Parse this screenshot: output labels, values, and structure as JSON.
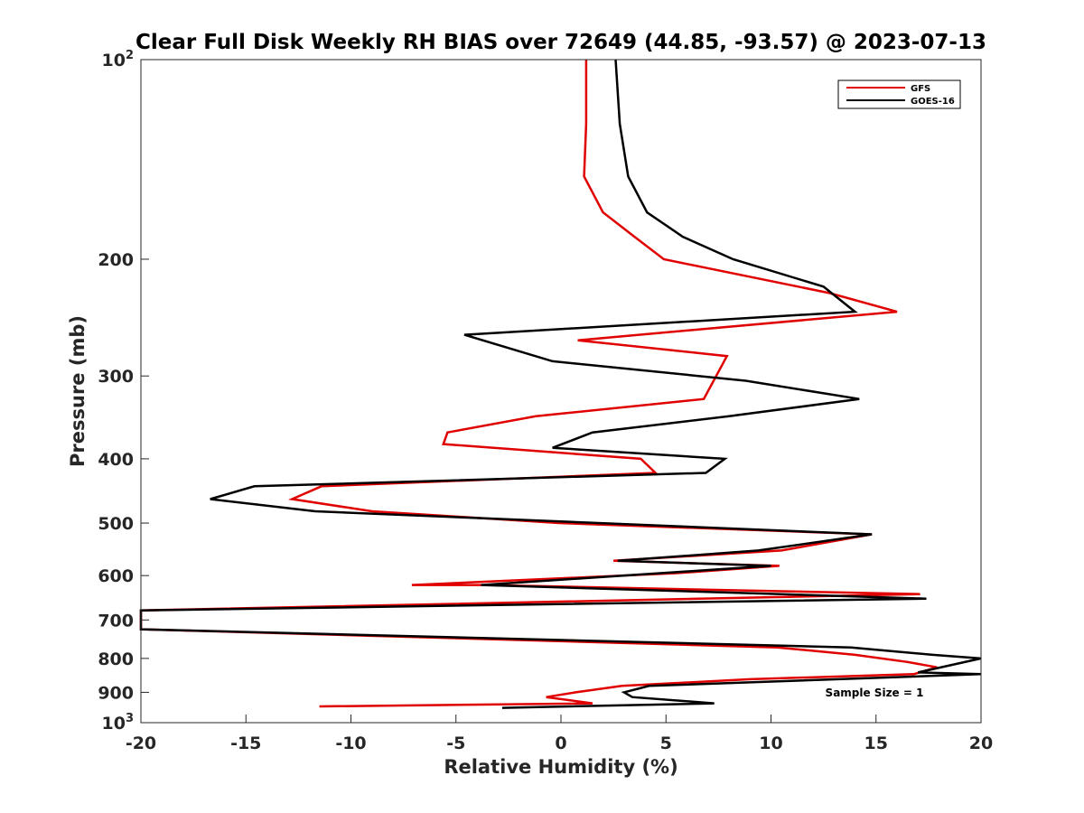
{
  "chart_data": {
    "type": "line",
    "title": "Clear Full Disk Weekly RH BIAS over 72649 (44.85, -93.57) @ 2023-07-13",
    "xlabel": "Relative Humidity (%)",
    "ylabel": "Pressure (mb)",
    "xlim": [
      -20,
      20
    ],
    "ylim": [
      100,
      1000
    ],
    "y_scale": "log",
    "y_reversed": true,
    "grid": false,
    "legend_position": "top-right",
    "annotation": "Sample Size = 1",
    "x_ticks": [
      {
        "value": -20,
        "label": "-20"
      },
      {
        "value": -15,
        "label": "-15"
      },
      {
        "value": -10,
        "label": "-10"
      },
      {
        "value": -5,
        "label": "-5"
      },
      {
        "value": 0,
        "label": "0"
      },
      {
        "value": 5,
        "label": "5"
      },
      {
        "value": 10,
        "label": "10"
      },
      {
        "value": 15,
        "label": "15"
      },
      {
        "value": 20,
        "label": "20"
      }
    ],
    "y_ticks": [
      {
        "value": 100,
        "base": "10",
        "exp": "2"
      },
      {
        "value": 200,
        "base": "200",
        "exp": ""
      },
      {
        "value": 300,
        "base": "300",
        "exp": ""
      },
      {
        "value": 400,
        "base": "400",
        "exp": ""
      },
      {
        "value": 500,
        "base": "500",
        "exp": ""
      },
      {
        "value": 600,
        "base": "600",
        "exp": ""
      },
      {
        "value": 700,
        "base": "700",
        "exp": ""
      },
      {
        "value": 800,
        "base": "800",
        "exp": ""
      },
      {
        "value": 900,
        "base": "900",
        "exp": ""
      },
      {
        "value": 1000,
        "base": "10",
        "exp": "3"
      }
    ],
    "series": [
      {
        "name": "GFS",
        "color": "#e00000",
        "points": [
          {
            "x": 1.2,
            "p": 100
          },
          {
            "x": 1.2,
            "p": 125
          },
          {
            "x": 1.1,
            "p": 150
          },
          {
            "x": 2.0,
            "p": 170
          },
          {
            "x": 3.5,
            "p": 185
          },
          {
            "x": 4.9,
            "p": 200
          },
          {
            "x": 12.8,
            "p": 225
          },
          {
            "x": 16.0,
            "p": 240
          },
          {
            "x": 0.8,
            "p": 265
          },
          {
            "x": 7.9,
            "p": 280
          },
          {
            "x": 6.8,
            "p": 325
          },
          {
            "x": -1.2,
            "p": 345
          },
          {
            "x": -5.4,
            "p": 365
          },
          {
            "x": -5.6,
            "p": 380
          },
          {
            "x": 3.8,
            "p": 400
          },
          {
            "x": 4.5,
            "p": 420
          },
          {
            "x": -11.4,
            "p": 440
          },
          {
            "x": -12.8,
            "p": 460
          },
          {
            "x": -9.0,
            "p": 480
          },
          {
            "x": -0.1,
            "p": 500
          },
          {
            "x": 14.8,
            "p": 520
          },
          {
            "x": 10.5,
            "p": 550
          },
          {
            "x": 2.5,
            "p": 570
          },
          {
            "x": 10.4,
            "p": 580
          },
          {
            "x": 5.5,
            "p": 595
          },
          {
            "x": -7.1,
            "p": 620
          },
          {
            "x": -3.6,
            "p": 620
          },
          {
            "x": 17.1,
            "p": 640
          },
          {
            "x": -20.0,
            "p": 677
          },
          {
            "x": -20.0,
            "p": 723
          },
          {
            "x": 10.3,
            "p": 770
          },
          {
            "x": 14.0,
            "p": 790
          },
          {
            "x": 16.5,
            "p": 810
          },
          {
            "x": 17.9,
            "p": 825
          },
          {
            "x": 16.8,
            "p": 845
          },
          {
            "x": 9.0,
            "p": 860
          },
          {
            "x": 2.9,
            "p": 880
          },
          {
            "x": 0.7,
            "p": 900
          },
          {
            "x": -0.7,
            "p": 915
          },
          {
            "x": 1.5,
            "p": 935
          },
          {
            "x": -11.5,
            "p": 945
          }
        ]
      },
      {
        "name": "GOES-16",
        "color": "#000000",
        "points": [
          {
            "x": 2.6,
            "p": 100
          },
          {
            "x": 2.8,
            "p": 125
          },
          {
            "x": 3.2,
            "p": 150
          },
          {
            "x": 4.1,
            "p": 170
          },
          {
            "x": 5.8,
            "p": 185
          },
          {
            "x": 8.2,
            "p": 200
          },
          {
            "x": 12.5,
            "p": 220
          },
          {
            "x": 14.0,
            "p": 240
          },
          {
            "x": -4.6,
            "p": 260
          },
          {
            "x": -0.4,
            "p": 285
          },
          {
            "x": 8.8,
            "p": 305
          },
          {
            "x": 14.2,
            "p": 325
          },
          {
            "x": 8.0,
            "p": 345
          },
          {
            "x": 1.5,
            "p": 365
          },
          {
            "x": -0.4,
            "p": 385
          },
          {
            "x": 7.8,
            "p": 400
          },
          {
            "x": 6.9,
            "p": 420
          },
          {
            "x": -14.6,
            "p": 440
          },
          {
            "x": -16.7,
            "p": 460
          },
          {
            "x": -11.7,
            "p": 480
          },
          {
            "x": 14.8,
            "p": 520
          },
          {
            "x": 9.4,
            "p": 550
          },
          {
            "x": 2.7,
            "p": 570
          },
          {
            "x": 10.0,
            "p": 580
          },
          {
            "x": -3.8,
            "p": 620
          },
          {
            "x": 17.4,
            "p": 650
          },
          {
            "x": -20.0,
            "p": 677
          },
          {
            "x": -20.0,
            "p": 723
          },
          {
            "x": 13.8,
            "p": 770
          },
          {
            "x": 17.7,
            "p": 790
          },
          {
            "x": 20.0,
            "p": 800
          },
          {
            "x": 17.0,
            "p": 840
          },
          {
            "x": 20.0,
            "p": 845
          },
          {
            "x": 4.2,
            "p": 880
          },
          {
            "x": 3.0,
            "p": 900
          },
          {
            "x": 3.4,
            "p": 915
          },
          {
            "x": 7.3,
            "p": 935
          },
          {
            "x": -2.8,
            "p": 950
          }
        ]
      }
    ]
  }
}
